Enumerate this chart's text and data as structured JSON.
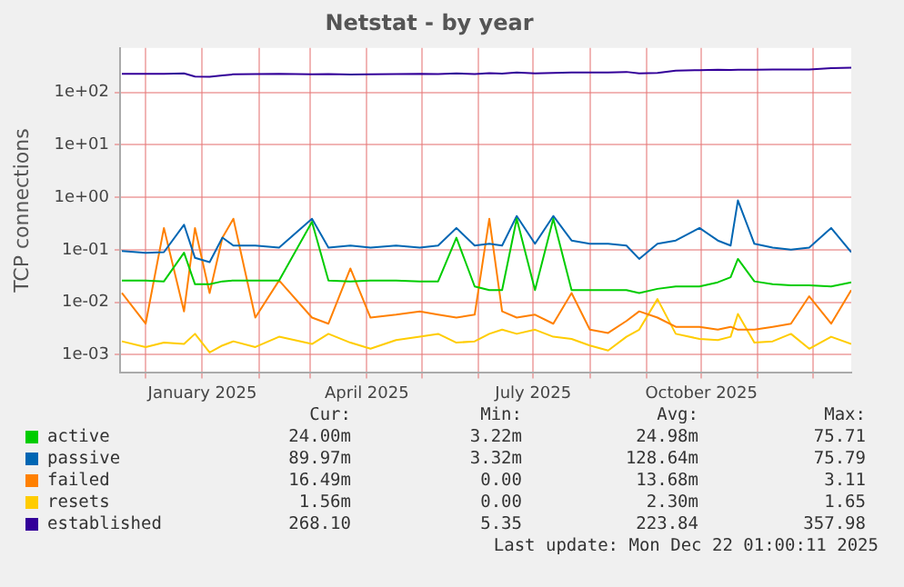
{
  "chart_data": {
    "type": "line",
    "title": "Netstat - by year",
    "ylabel": "TCP connections",
    "log": "y",
    "grid": true,
    "legend": "bottom",
    "marker": "none",
    "line_style": "solid",
    "x": [
      "2024-11-18",
      "2024-12-01",
      "2024-12-11",
      "2024-12-22",
      "2024-12-28",
      "2025-01-05",
      "2025-01-12",
      "2025-01-18",
      "2025-01-30",
      "2025-02-12",
      "2025-03-02",
      "2025-03-11",
      "2025-03-23",
      "2025-04-03",
      "2025-04-17",
      "2025-04-30",
      "2025-05-10",
      "2025-05-20",
      "2025-05-30",
      "2025-06-07",
      "2025-06-14",
      "2025-06-22",
      "2025-07-02",
      "2025-07-12",
      "2025-07-22",
      "2025-08-01",
      "2025-08-11",
      "2025-08-21",
      "2025-08-28",
      "2025-09-07",
      "2025-09-17",
      "2025-09-30",
      "2025-10-10",
      "2025-10-17",
      "2025-10-21",
      "2025-10-30",
      "2025-11-09",
      "2025-11-19",
      "2025-11-29",
      "2025-12-11",
      "2025-12-22"
    ],
    "xlim": [
      "2024-11-17",
      "2025-12-22"
    ],
    "xticks": [
      {
        "value": "2024-12-01",
        "label": null
      },
      {
        "value": "2025-01-01",
        "label": "January 2025"
      },
      {
        "value": "2025-02-01",
        "label": null
      },
      {
        "value": "2025-03-01",
        "label": null
      },
      {
        "value": "2025-04-01",
        "label": "April 2025"
      },
      {
        "value": "2025-05-01",
        "label": null
      },
      {
        "value": "2025-06-01",
        "label": null
      },
      {
        "value": "2025-07-01",
        "label": "July 2025"
      },
      {
        "value": "2025-08-01",
        "label": null
      },
      {
        "value": "2025-09-01",
        "label": null
      },
      {
        "value": "2025-10-01",
        "label": "October 2025"
      },
      {
        "value": "2025-11-01",
        "label": null
      },
      {
        "value": "2025-12-01",
        "label": null
      }
    ],
    "ylim": [
      0.00045,
      700
    ],
    "yticks": [
      {
        "value": 0.001,
        "label": "1e-03"
      },
      {
        "value": 0.01,
        "label": "1e-02"
      },
      {
        "value": 0.1,
        "label": "1e-01"
      },
      {
        "value": 1,
        "label": "1e+00"
      },
      {
        "value": 10,
        "label": "1e+01"
      },
      {
        "value": 100,
        "label": "1e+02"
      }
    ],
    "series": [
      {
        "name": "active",
        "color": "#00cc00",
        "values": [
          0.026,
          0.026,
          0.025,
          0.088,
          0.022,
          0.022,
          0.025,
          0.026,
          0.026,
          0.026,
          0.34,
          0.026,
          0.025,
          0.026,
          0.026,
          0.025,
          0.025,
          0.17,
          0.02,
          0.017,
          0.017,
          0.39,
          0.017,
          0.39,
          0.017,
          0.017,
          0.017,
          0.017,
          0.015,
          0.018,
          0.02,
          0.02,
          0.024,
          0.03,
          0.067,
          0.025,
          0.022,
          0.021,
          0.021,
          0.02,
          0.024
        ]
      },
      {
        "name": "passive",
        "color": "#0066b3",
        "values": [
          0.095,
          0.087,
          0.09,
          0.3,
          0.07,
          0.058,
          0.17,
          0.12,
          0.12,
          0.11,
          0.39,
          0.11,
          0.12,
          0.11,
          0.12,
          0.11,
          0.12,
          0.26,
          0.12,
          0.13,
          0.12,
          0.44,
          0.13,
          0.44,
          0.15,
          0.13,
          0.13,
          0.12,
          0.067,
          0.13,
          0.15,
          0.26,
          0.15,
          0.12,
          0.87,
          0.13,
          0.11,
          0.1,
          0.11,
          0.26,
          0.09
        ]
      },
      {
        "name": "failed",
        "color": "#ff8000",
        "values": [
          0.015,
          0.0039,
          0.26,
          0.0067,
          0.26,
          0.015,
          0.17,
          0.39,
          0.0051,
          0.026,
          0.0051,
          0.0039,
          0.044,
          0.0051,
          0.0058,
          0.0067,
          0.0058,
          0.0051,
          0.0058,
          0.39,
          0.0067,
          0.0051,
          0.0058,
          0.0039,
          0.015,
          0.003,
          0.0026,
          0.0044,
          0.0067,
          0.0051,
          0.0034,
          0.0034,
          0.003,
          0.0034,
          0.003,
          0.003,
          0.0034,
          0.0039,
          0.013,
          0.0039,
          0.017
        ]
      },
      {
        "name": "resets",
        "color": "#ffcc00",
        "values": [
          0.0018,
          0.0014,
          0.0017,
          0.0016,
          0.0025,
          0.0011,
          0.0015,
          0.0018,
          0.0014,
          0.0022,
          0.0016,
          0.0025,
          0.0017,
          0.0013,
          0.0019,
          0.0022,
          0.0025,
          0.0017,
          0.0018,
          0.0025,
          0.003,
          0.0025,
          0.003,
          0.0022,
          0.002,
          0.0015,
          0.0012,
          0.0022,
          0.003,
          0.0115,
          0.0025,
          0.002,
          0.0019,
          0.0022,
          0.006,
          0.0017,
          0.0018,
          0.0025,
          0.0013,
          0.0022,
          0.0016
        ]
      },
      {
        "name": "established",
        "color": "#330099",
        "values": [
          225,
          225,
          225,
          230,
          200,
          197,
          210,
          220,
          222,
          225,
          220,
          222,
          218,
          220,
          222,
          225,
          222,
          230,
          222,
          232,
          228,
          240,
          230,
          235,
          240,
          240,
          240,
          245,
          230,
          235,
          258,
          265,
          270,
          268,
          270,
          270,
          272,
          272,
          272,
          290,
          295
        ]
      }
    ],
    "annotations": [
      "Cur:",
      "Min:",
      "Avg:",
      "Max:",
      "24.00m",
      "3.22m",
      "24.98m",
      "75.71",
      "89.97m",
      "3.32m",
      "128.64m",
      "75.79",
      "16.49m",
      "0.00",
      "13.68m",
      "3.11",
      "1.56m",
      "0.00",
      "2.30m",
      "1.65",
      "268.10",
      "5.35",
      "223.84",
      "357.98",
      "Last update: Mon Dec 22 01:00:11 2025"
    ]
  }
}
